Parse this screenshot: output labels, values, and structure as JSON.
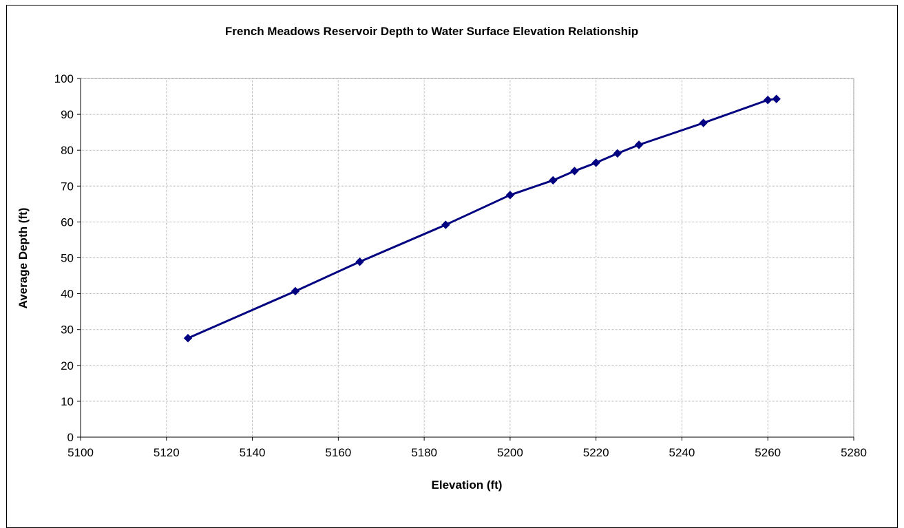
{
  "chart_data": {
    "type": "line",
    "title": "French Meadows Reservoir Depth to Water Surface Elevation Relationship",
    "xlabel": "Elevation (ft)",
    "ylabel": "Average Depth (ft)",
    "xlim": [
      5100,
      5280
    ],
    "ylim": [
      0,
      100
    ],
    "xticks": [
      "5100",
      "5120",
      "5140",
      "5160",
      "5180",
      "5200",
      "5220",
      "5240",
      "5260",
      "5280"
    ],
    "yticks": [
      "0",
      "10",
      "20",
      "30",
      "40",
      "50",
      "60",
      "70",
      "80",
      "90",
      "100"
    ],
    "grid": true,
    "legend": "none",
    "marker": "diamond",
    "series": [
      {
        "color": "#000080",
        "x": [
          5125,
          5150,
          5165,
          5185,
          5200,
          5210,
          5215,
          5220,
          5225,
          5230,
          5245,
          5260,
          5262
        ],
        "y": [
          27.6,
          40.7,
          48.9,
          59.2,
          67.5,
          71.6,
          74.2,
          76.5,
          79.1,
          81.5,
          87.6,
          94.0,
          94.3
        ]
      }
    ]
  }
}
